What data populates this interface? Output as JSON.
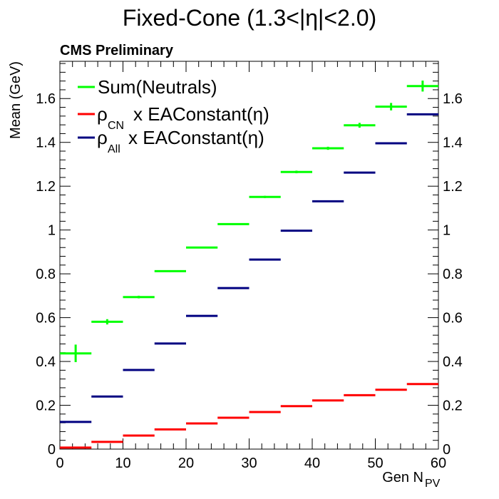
{
  "chart_data": {
    "type": "line",
    "title": "Fixed-Cone (1.3<|η|<2.0)",
    "annotation": "CMS Preliminary",
    "xlabel": "Gen N",
    "xlabel_sub": "PV",
    "ylabel": "Mean (GeV)",
    "xlim": [
      0,
      60
    ],
    "ylim": [
      0,
      1.77
    ],
    "x_ticks": [
      0,
      10,
      20,
      30,
      40,
      50,
      60
    ],
    "x_tick_labels": [
      "0",
      "10",
      "20",
      "30",
      "40",
      "50",
      "60"
    ],
    "y_ticks": [
      0,
      0.2,
      0.4,
      0.6,
      0.8,
      1.0,
      1.2,
      1.4,
      1.6
    ],
    "y_tick_labels": [
      "0",
      "0.2",
      "0.4",
      "0.6",
      "0.8",
      "1",
      "1.2",
      "1.4",
      "1.6"
    ],
    "bin_edges": [
      0,
      5,
      10,
      15,
      20,
      25,
      30,
      35,
      40,
      45,
      50,
      55,
      60
    ],
    "legend_position": "top-left",
    "series": [
      {
        "name": "Sum(Neutrals)",
        "color": "#00ff00",
        "values": [
          0.437,
          0.581,
          0.694,
          0.812,
          0.92,
          1.027,
          1.151,
          1.265,
          1.373,
          1.478,
          1.563,
          1.657
        ],
        "errors": [
          0.04,
          0.012,
          0.006,
          0.004,
          0.003,
          0.004,
          0.005,
          0.006,
          0.007,
          0.011,
          0.017,
          0.025
        ]
      },
      {
        "name": "ρ x EAConstant(η)",
        "name_main": "ρ",
        "name_sub": "CN",
        "name_rest": "x EAConstant(η)",
        "color": "#ff0000",
        "values": [
          0.007,
          0.033,
          0.062,
          0.09,
          0.117,
          0.143,
          0.169,
          0.196,
          0.222,
          0.246,
          0.271,
          0.297
        ],
        "errors": [
          0,
          0,
          0,
          0,
          0,
          0,
          0,
          0,
          0,
          0,
          0,
          0
        ]
      },
      {
        "name": "ρ x EAConstant(η)",
        "name_main": "ρ",
        "name_sub": "All",
        "name_rest": "x EAConstant(η)",
        "color": "#000080",
        "values": [
          0.124,
          0.24,
          0.361,
          0.482,
          0.608,
          0.735,
          0.865,
          0.997,
          1.131,
          1.262,
          1.396,
          1.528
        ],
        "errors": [
          0,
          0,
          0,
          0,
          0,
          0,
          0,
          0,
          0,
          0,
          0,
          0
        ]
      }
    ]
  }
}
